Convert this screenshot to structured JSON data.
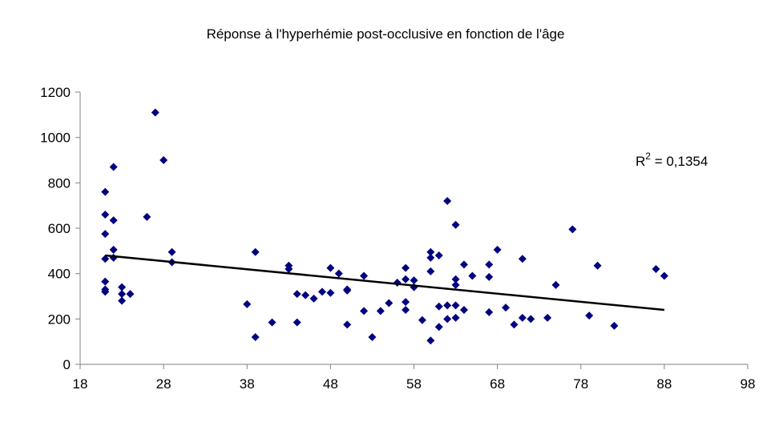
{
  "chart_data": {
    "type": "scatter",
    "title": "Réponse à l'hyperhémie post-occlusive en fonction de l'âge",
    "xlim": [
      18,
      98
    ],
    "xticks": [
      18,
      28,
      38,
      48,
      58,
      68,
      78,
      88,
      98
    ],
    "ylim": [
      0,
      1200
    ],
    "yticks": [
      0,
      200,
      400,
      600,
      800,
      1000,
      1200
    ],
    "color": "#000080",
    "grid": false,
    "x": [
      21,
      21,
      21,
      21,
      21,
      21,
      21,
      22,
      22,
      22,
      22,
      23,
      23,
      23,
      24,
      26,
      27,
      28,
      29,
      29,
      38,
      39,
      39,
      41,
      43,
      43,
      44,
      44,
      45,
      46,
      47,
      48,
      48,
      49,
      50,
      50,
      50,
      52,
      52,
      53,
      54,
      55,
      56,
      57,
      57,
      57,
      57,
      58,
      58,
      59,
      60,
      60,
      60,
      60,
      61,
      61,
      61,
      62,
      62,
      62,
      63,
      63,
      63,
      63,
      63,
      64,
      64,
      65,
      67,
      67,
      67,
      68,
      69,
      70,
      71,
      71,
      72,
      74,
      75,
      77,
      79,
      80,
      82,
      87,
      88
    ],
    "y": [
      760,
      660,
      575,
      465,
      365,
      320,
      330,
      870,
      635,
      505,
      470,
      340,
      280,
      310,
      310,
      650,
      1110,
      900,
      495,
      450,
      265,
      495,
      120,
      185,
      435,
      420,
      310,
      185,
      305,
      290,
      320,
      315,
      425,
      400,
      330,
      325,
      175,
      390,
      235,
      120,
      235,
      270,
      360,
      425,
      375,
      275,
      240,
      370,
      340,
      195,
      495,
      470,
      410,
      105,
      480,
      255,
      165,
      720,
      260,
      200,
      615,
      375,
      350,
      260,
      205,
      440,
      240,
      390,
      440,
      385,
      230,
      505,
      250,
      175,
      465,
      205,
      200,
      205,
      350,
      595,
      215,
      435,
      170,
      420,
      390
    ],
    "trendline": {
      "x": [
        21,
        88
      ],
      "y": [
        480,
        240
      ],
      "color": "#000000"
    },
    "annotation": {
      "base": "R",
      "sup": "2",
      "rest": " = 0,1354"
    }
  }
}
